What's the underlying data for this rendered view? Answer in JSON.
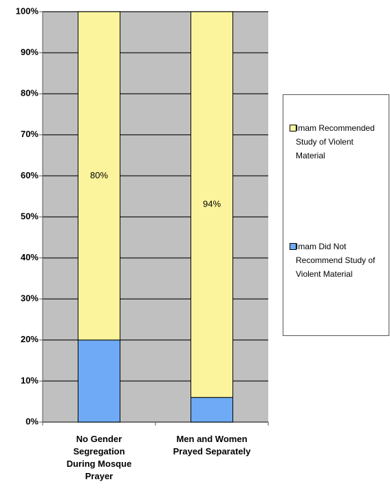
{
  "chart_data": {
    "type": "stacked_bar",
    "categories": [
      "No Gender Segregation During Mosque Prayer",
      "Men and Women Prayed Separately"
    ],
    "series": [
      {
        "name": "Imam Did Not Recommend Study of Violent Material",
        "color": "#6eaaf5",
        "values": [
          20,
          6
        ]
      },
      {
        "name": "Imam Recommended Study of Violent Material",
        "color": "#fbf49c",
        "values": [
          80,
          94
        ],
        "value_labels": [
          "80%",
          "94%"
        ]
      }
    ],
    "ylim": [
      0,
      100
    ],
    "yticks": [
      {
        "value": 0,
        "label": "0%"
      },
      {
        "value": 10,
        "label": "10%"
      },
      {
        "value": 20,
        "label": "20%"
      },
      {
        "value": 30,
        "label": "30%"
      },
      {
        "value": 40,
        "label": "40%"
      },
      {
        "value": 50,
        "label": "50%"
      },
      {
        "value": 60,
        "label": "60%"
      },
      {
        "value": 70,
        "label": "70%"
      },
      {
        "value": 80,
        "label": "80%"
      },
      {
        "value": 90,
        "label": "90%"
      },
      {
        "value": 100,
        "label": "100%"
      }
    ],
    "grid": true
  }
}
